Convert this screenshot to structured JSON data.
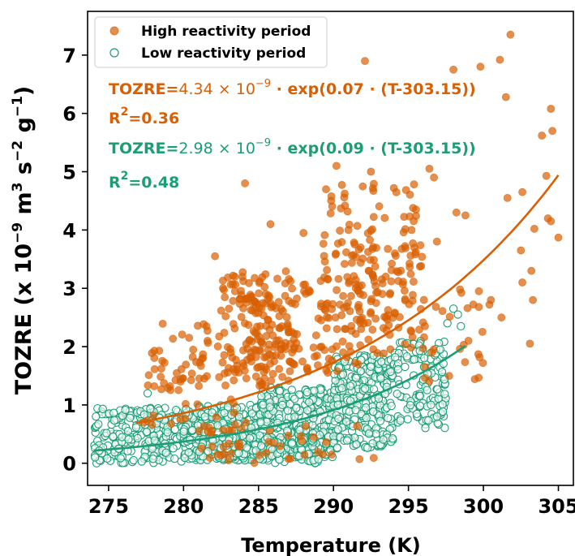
{
  "chart_data": {
    "type": "scatter",
    "xlabel": "Temperature (K)",
    "ylabel": "TOZRE (x 10",
    "ylabel_parts": {
      "pre": "TOZRE (x 10",
      "exp1": "−9",
      "m": " m",
      "exp2": "3",
      "s": " s",
      "exp3": "−2",
      "g": " g",
      "exp4": "−1",
      "close": ")"
    },
    "xlim": [
      273.6,
      306.0
    ],
    "ylim": [
      -0.38,
      7.75
    ],
    "xticks": [
      275,
      280,
      285,
      290,
      295,
      300,
      305
    ],
    "yticks": [
      0,
      1,
      2,
      3,
      4,
      5,
      6,
      7
    ],
    "legend_position": "top-left",
    "series": [
      {
        "name": "High reactivity period",
        "marker": "filled-circle",
        "color": "#d95f02",
        "fit": {
          "a": 4.34e-09,
          "b": 0.07,
          "T0": 303.15,
          "x_range": [
            276.8,
            305.0
          ]
        },
        "clusters": [
          {
            "x": [
              277.5,
              283.5
            ],
            "y": [
              0.55,
              2.4
            ],
            "n": 70
          },
          {
            "x": [
              282.5,
              287.5
            ],
            "y": [
              1.3,
              3.3
            ],
            "n": 120
          },
          {
            "x": [
              284.0,
              286.5
            ],
            "y": [
              1.6,
              2.9
            ],
            "n": 60
          },
          {
            "x": [
              286.5,
              292.0
            ],
            "y": [
              1.5,
              3.2
            ],
            "n": 80
          },
          {
            "x": [
              289.0,
              296.0
            ],
            "y": [
              1.8,
              4.8
            ],
            "n": 120
          },
          {
            "x": [
              291.0,
              295.5
            ],
            "y": [
              2.2,
              3.8
            ],
            "n": 60
          },
          {
            "x": [
              281.0,
              293.0
            ],
            "y": [
              0.0,
              0.7
            ],
            "n": 40
          },
          {
            "x": [
              296.0,
              300.0
            ],
            "y": [
              1.4,
              3.0
            ],
            "n": 25
          }
        ],
        "points": [
          [
            301.8,
            7.35
          ],
          [
            292.1,
            6.9
          ],
          [
            301.1,
            6.92
          ],
          [
            298.0,
            6.75
          ],
          [
            299.8,
            6.8
          ],
          [
            301.5,
            6.28
          ],
          [
            304.5,
            6.08
          ],
          [
            304.6,
            5.7
          ],
          [
            303.9,
            5.62
          ],
          [
            290.2,
            5.1
          ],
          [
            296.4,
            5.05
          ],
          [
            292.5,
            5.0
          ],
          [
            296.7,
            4.9
          ],
          [
            284.1,
            4.8
          ],
          [
            304.2,
            4.93
          ],
          [
            301.6,
            4.55
          ],
          [
            302.6,
            4.65
          ],
          [
            304.3,
            4.2
          ],
          [
            304.5,
            4.15
          ],
          [
            305.0,
            3.87
          ],
          [
            303.4,
            4.02
          ],
          [
            302.5,
            3.65
          ],
          [
            303.2,
            3.3
          ],
          [
            302.6,
            3.1
          ],
          [
            303.3,
            2.8
          ],
          [
            301.2,
            2.5
          ],
          [
            303.1,
            2.05
          ],
          [
            300.5,
            2.8
          ],
          [
            300.4,
            2.72
          ],
          [
            299.7,
            2.95
          ],
          [
            298.2,
            4.3
          ],
          [
            298.8,
            4.25
          ],
          [
            296.9,
            3.8
          ],
          [
            299.0,
            2.1
          ],
          [
            296.1,
            2.35
          ],
          [
            285.8,
            4.1
          ],
          [
            282.1,
            3.55
          ],
          [
            281.6,
            2.1
          ],
          [
            279.8,
            1.4
          ],
          [
            277.3,
            0.7
          ],
          [
            278.0,
            0.82
          ],
          [
            283.0,
            0.05
          ],
          [
            286.0,
            0.35
          ],
          [
            293.5,
            2.5
          ],
          [
            289.5,
            4.7
          ],
          [
            288.0,
            3.95
          ],
          [
            291.0,
            4.0
          ],
          [
            295.5,
            4.35
          ]
        ]
      },
      {
        "name": "Low reactivity period",
        "marker": "open-circle",
        "color": "#1b9e77",
        "fit": {
          "a": 2.98e-09,
          "b": 0.09,
          "T0": 303.15,
          "x_range": [
            274.0,
            298.8
          ]
        },
        "clusters": [
          {
            "x": [
              274.0,
              280.0
            ],
            "y": [
              0.0,
              0.95
            ],
            "n": 220
          },
          {
            "x": [
              280.0,
              285.0
            ],
            "y": [
              0.05,
              1.0
            ],
            "n": 320
          },
          {
            "x": [
              285.0,
              290.0
            ],
            "y": [
              0.1,
              1.3
            ],
            "n": 320
          },
          {
            "x": [
              290.0,
              294.0
            ],
            "y": [
              0.25,
              1.85
            ],
            "n": 280
          },
          {
            "x": [
              294.0,
              297.5
            ],
            "y": [
              0.6,
              2.1
            ],
            "n": 130
          },
          {
            "x": [
              281.0,
              289.0
            ],
            "y": [
              0.0,
              0.45
            ],
            "n": 120
          }
        ],
        "points": [
          [
            298.0,
            2.65
          ],
          [
            298.3,
            2.55
          ],
          [
            297.6,
            2.4
          ],
          [
            296.9,
            0.8
          ],
          [
            296.5,
            1.0
          ],
          [
            298.5,
            2.35
          ],
          [
            274.2,
            0.0
          ],
          [
            274.4,
            0.05
          ],
          [
            274.1,
            0.1
          ],
          [
            277.6,
            1.2
          ],
          [
            278.4,
            0.78
          ],
          [
            276.3,
            0.55
          ]
        ]
      }
    ],
    "annotations": [
      {
        "prefix": "TOZRE=",
        "coef": "4.34 × 10",
        "exp": "−9",
        "suffix": " · exp(0.07 · (T-303.15))",
        "r2_label": "R",
        "r2_sup": "2",
        "r2_value": "=0.36",
        "color": "#d95f02"
      },
      {
        "prefix": "TOZRE=",
        "coef": "2.98 × 10",
        "exp": "−9",
        "suffix": " · exp(0.09 · (T-303.15))",
        "r2_label": "R",
        "r2_sup": "2",
        "r2_value": "=0.48",
        "color": "#1b9e77"
      }
    ]
  }
}
